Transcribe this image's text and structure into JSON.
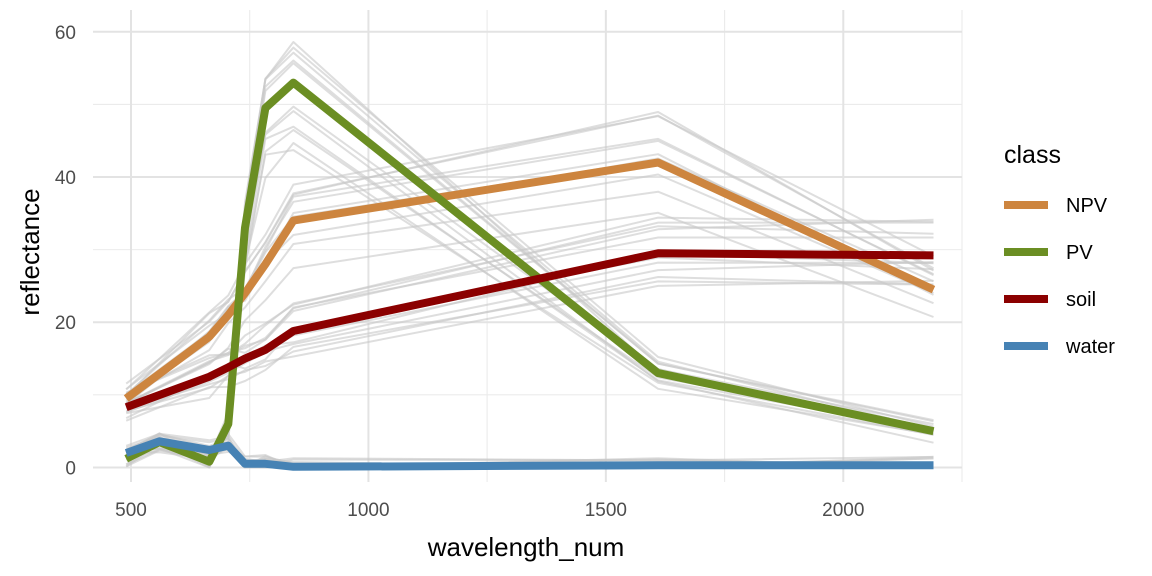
{
  "chart_data": {
    "type": "line",
    "xlabel": "wavelength_num",
    "ylabel": "reflectance",
    "xlim": [
      420,
      2250
    ],
    "ylim": [
      -2,
      63
    ],
    "x_ticks": [
      500,
      1000,
      1500,
      2000
    ],
    "y_ticks": [
      0,
      20,
      40,
      60
    ],
    "grid": true,
    "legend": {
      "title": "class",
      "position": "right"
    },
    "series": [
      {
        "name": "NPV",
        "color": "#cd853f",
        "x": [
          490,
          665,
          705,
          740,
          783,
          842,
          1610,
          2190
        ],
        "values": [
          9.5,
          18,
          21,
          24,
          28,
          34,
          42,
          24.5
        ]
      },
      {
        "name": "PV",
        "color": "#6b8e23",
        "x": [
          490,
          560,
          665,
          705,
          740,
          783,
          842,
          1610,
          2190
        ],
        "values": [
          1.2,
          3.5,
          0.8,
          6,
          33,
          49.5,
          53,
          13,
          5
        ]
      },
      {
        "name": "soil",
        "color": "#8b0000",
        "x": [
          490,
          665,
          705,
          740,
          783,
          842,
          1610,
          2190
        ],
        "values": [
          8.3,
          12.5,
          13.8,
          15,
          16.2,
          18.8,
          29.5,
          29.2
        ]
      },
      {
        "name": "water",
        "color": "#4682b4",
        "x": [
          490,
          560,
          665,
          705,
          740,
          783,
          842,
          1610,
          2190
        ],
        "values": [
          2,
          3.6,
          2.4,
          3,
          0.5,
          0.5,
          0.1,
          0.3,
          0.3
        ]
      }
    ]
  }
}
